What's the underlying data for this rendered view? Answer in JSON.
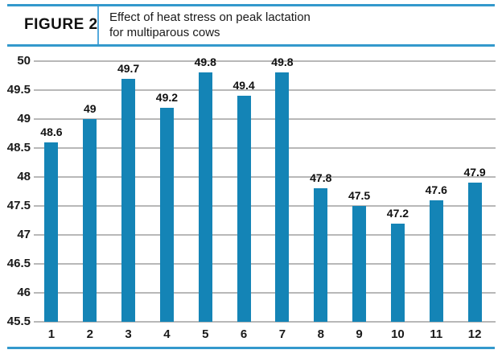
{
  "figure": {
    "label": "FIGURE 2",
    "title_line1": "Effect of heat stress on peak lactation",
    "title_line2": "for multiparous cows"
  },
  "colors": {
    "bar": "#1484b6",
    "rule_blue": "#3399cc",
    "divider_blue": "#55aadd",
    "gridline": "#b8b8b8",
    "text": "#1a1a1a"
  },
  "chart_data": {
    "type": "bar",
    "title": "Effect of heat stress on peak lactation for multiparous cows",
    "categories": [
      "1",
      "2",
      "3",
      "4",
      "5",
      "6",
      "7",
      "8",
      "9",
      "10",
      "11",
      "12"
    ],
    "values": [
      48.6,
      49,
      49.7,
      49.2,
      49.8,
      49.4,
      49.8,
      47.8,
      47.5,
      47.2,
      47.6,
      47.9
    ],
    "value_labels": [
      "48.6",
      "49",
      "49.7",
      "49.2",
      "49.8",
      "49.4",
      "49.8",
      "47.8",
      "47.5",
      "47.2",
      "47.6",
      "47.9"
    ],
    "xlabel": "",
    "ylabel": "",
    "ylim": [
      45.5,
      50
    ],
    "ytick_step": 0.5,
    "ytick_labels": [
      "50",
      "49.5",
      "49",
      "48.5",
      "48",
      "47.5",
      "47",
      "46.5",
      "46",
      "45.5"
    ],
    "grid": true,
    "legend_position": "none"
  }
}
